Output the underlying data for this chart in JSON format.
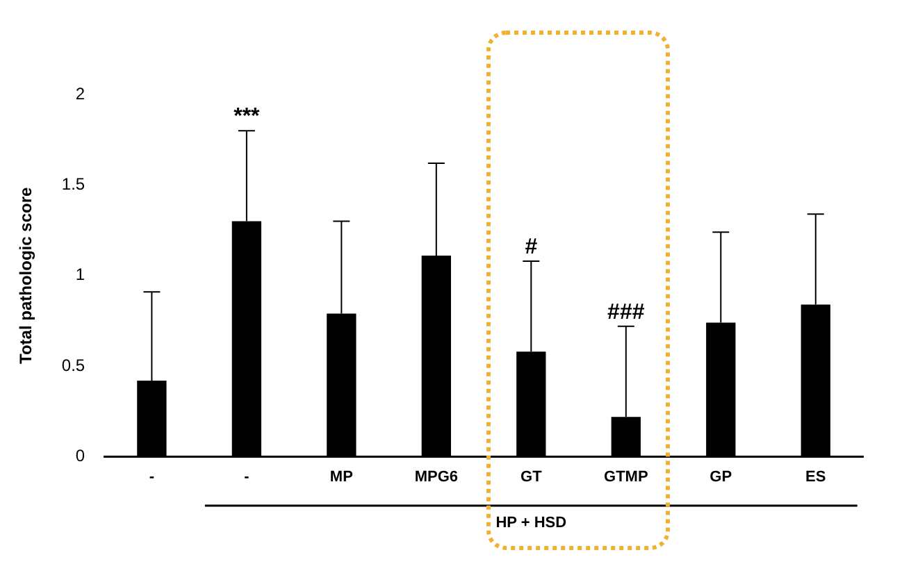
{
  "chart_data": {
    "type": "bar",
    "ylabel": "Total pathologic score",
    "categories": [
      "-",
      "-",
      "MP",
      "MPG6",
      "GT",
      "GTMP",
      "GP",
      "ES"
    ],
    "values": [
      0.42,
      1.3,
      0.79,
      1.11,
      0.58,
      0.22,
      0.74,
      0.84
    ],
    "color": "#000000",
    "errors": [
      [
        0.42,
        0.91
      ],
      [
        1.3,
        1.8
      ],
      [
        0.79,
        1.3
      ],
      [
        1.11,
        1.62
      ],
      [
        0.58,
        1.08
      ],
      [
        0.22,
        0.72
      ],
      [
        0.74,
        1.24
      ],
      [
        0.84,
        1.34
      ]
    ],
    "ylim": [
      0,
      2
    ],
    "yticks": [
      0,
      0.5,
      1,
      1.5,
      2
    ],
    "grid": false,
    "annotations": [
      "***",
      {
        "text": "#",
        "x": "GT",
        "y": 1.08
      },
      {
        "text": "###",
        "x": "GTMP",
        "y": 0.72
      },
      "HP + HSD"
    ]
  }
}
